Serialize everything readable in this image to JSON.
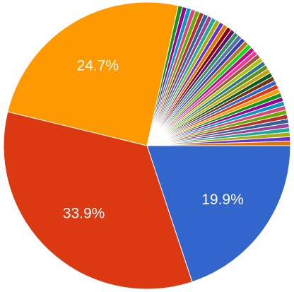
{
  "chart_data": {
    "type": "pie",
    "values": [
      19.9,
      33.9,
      24.7,
      0.5,
      0.5,
      0.5,
      0.5,
      0.5,
      0.5,
      0.5,
      0.5,
      0.5,
      0.5,
      0.5,
      0.5,
      0.5,
      0.5,
      0.5,
      0.5,
      0.5,
      0.5,
      0.5,
      0.5,
      0.5,
      0.5,
      0.5,
      0.5,
      0.5,
      0.5,
      0.5,
      0.5,
      0.5,
      0.5,
      0.5,
      0.5,
      0.5,
      0.5,
      0.5,
      0.5,
      0.5,
      0.5,
      0.5,
      0.5,
      0.5,
      0.5,
      0.5
    ],
    "value_labels": [
      "19.9%",
      "33.9%",
      "24.7%",
      null,
      null,
      null,
      null,
      null,
      null,
      null,
      null,
      null,
      null,
      null,
      null,
      null,
      null,
      null,
      null,
      null,
      null,
      null,
      null,
      null,
      null,
      null,
      null,
      null,
      null,
      null,
      null,
      null,
      null,
      null,
      null,
      null,
      null,
      null,
      null,
      null,
      null,
      null,
      null,
      null,
      null,
      null
    ],
    "colors": [
      "#3366cc",
      "#dc3912",
      "#ff9900",
      "#109618",
      "#990099",
      "#0099c6",
      "#dd4477",
      "#66aa00",
      "#b82e2e",
      "#316395",
      "#994499",
      "#22aa99",
      "#aaaa11",
      "#6633cc",
      "#e67300",
      "#8b0707",
      "#651067",
      "#329262",
      "#5574a6",
      "#3b3eac",
      "#b77322",
      "#16d620",
      "#b91383",
      "#f4359e",
      "#9c5935",
      "#a9c413",
      "#2a778d",
      "#668d1c",
      "#bea413",
      "#0c5922",
      "#743411",
      "#3366cc",
      "#dc3912",
      "#ff9900",
      "#109618",
      "#990099",
      "#0099c6",
      "#dd4477",
      "#66aa00",
      "#b82e2e",
      "#316395",
      "#994499",
      "#22aa99",
      "#aaaa11",
      "#6633cc",
      "#e67300"
    ]
  }
}
